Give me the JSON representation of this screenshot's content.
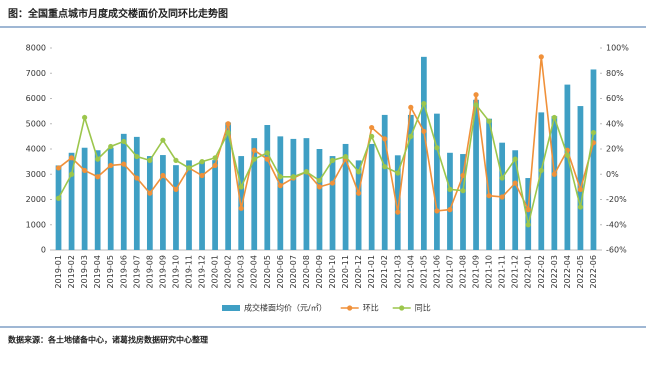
{
  "chart_data": {
    "type": "combo",
    "title": "图：全国重点城市月度成交楼面价及同环比走势图",
    "source": "数据来源：各土地储备中心，诸葛找房数据研究中心整理",
    "categories": [
      "2019-01",
      "2019-02",
      "2019-03",
      "2019-04",
      "2019-05",
      "2019-06",
      "2019-07",
      "2019-08",
      "2019-09",
      "2019-10",
      "2019-11",
      "2019-12",
      "2020-01",
      "2020-02",
      "2020-03",
      "2020-04",
      "2020-05",
      "2020-06",
      "2020-07",
      "2020-08",
      "2020-09",
      "2020-10",
      "2020-11",
      "2020-12",
      "2021-01",
      "2021-02",
      "2021-03",
      "2021-04",
      "2021-05",
      "2021-06",
      "2021-07",
      "2021-08",
      "2021-09",
      "2021-10",
      "2021-11",
      "2021-12",
      "2022-01",
      "2022-02",
      "2022-03",
      "2022-04",
      "2022-05",
      "2022-06"
    ],
    "series": [
      {
        "name": "成交楼面均价（元/㎡）",
        "kind": "bar",
        "axis": "y",
        "color": "#3f9fc4",
        "values": [
          3350,
          3850,
          4050,
          3950,
          4050,
          4600,
          4480,
          3720,
          3760,
          3360,
          3550,
          3520,
          3560,
          5050,
          3720,
          4430,
          4950,
          4500,
          4400,
          4430,
          4000,
          3720,
          4200,
          3550,
          4200,
          5350,
          3750,
          5350,
          7650,
          5400,
          3850,
          3800,
          5950,
          5200,
          4250,
          3950,
          2850,
          5450,
          5300,
          6550,
          5700,
          7150
        ]
      },
      {
        "name": "环比",
        "kind": "line",
        "axis": "y2",
        "color": "#f0913a",
        "values": [
          5,
          13,
          3,
          -2,
          7,
          8,
          -3,
          -15,
          -1,
          -12,
          5,
          -1,
          7,
          40,
          -27,
          19,
          12,
          -9,
          -3,
          2,
          -10,
          -7,
          12,
          -15,
          37,
          28,
          -30,
          53,
          34,
          -29,
          -28,
          -1,
          63,
          -17,
          -18,
          -7,
          -28,
          93,
          0,
          19,
          -12,
          25
        ]
      },
      {
        "name": "同比",
        "kind": "line",
        "axis": "y2",
        "color": "#9cc64c",
        "values": [
          -19,
          0,
          45,
          12,
          22,
          26,
          14,
          11,
          27,
          11,
          5,
          10,
          13,
          33,
          -10,
          12,
          17,
          -2,
          -2,
          2,
          -5,
          11,
          14,
          2,
          30,
          6,
          1,
          30,
          56,
          21,
          -12,
          -13,
          55,
          42,
          -3,
          12,
          -40,
          3,
          45,
          15,
          -26,
          33
        ]
      }
    ],
    "ylim": [
      0,
      8000
    ],
    "yticks": [
      0,
      1000,
      2000,
      3000,
      4000,
      5000,
      6000,
      7000,
      8000
    ],
    "y2lim": [
      -60,
      100
    ],
    "y2ticks": [
      {
        "value": -60,
        "label": "-60%"
      },
      {
        "value": -40,
        "label": "-40%"
      },
      {
        "value": -20,
        "label": "-20%"
      },
      {
        "value": 0,
        "label": "0%"
      },
      {
        "value": 20,
        "label": "20%"
      },
      {
        "value": 40,
        "label": "40%"
      },
      {
        "value": 60,
        "label": "60%"
      },
      {
        "value": 80,
        "label": "80%"
      },
      {
        "value": 100,
        "label": "100%"
      }
    ],
    "grid": false
  }
}
